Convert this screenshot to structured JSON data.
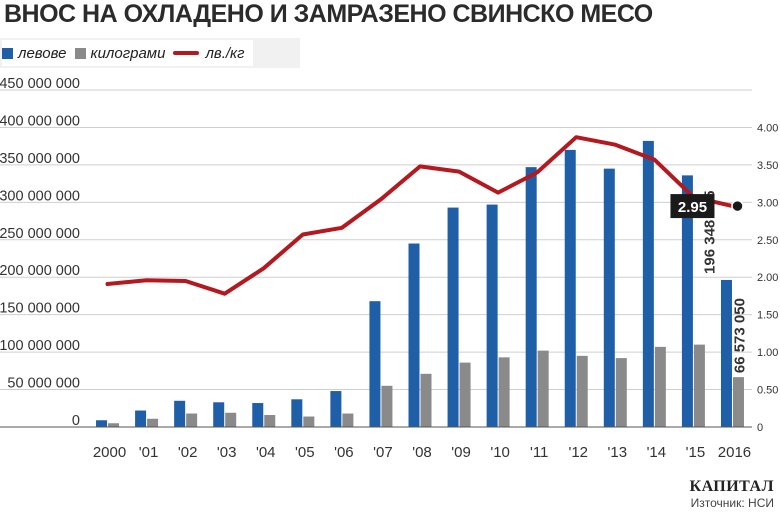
{
  "header": {
    "title": "ВНОС НА ОХЛАДЕНО И ЗАМРАЗЕНО СВИНСКО МЕСО"
  },
  "legend": {
    "leva": "левове",
    "kg": "килограми",
    "price": "лв./кг"
  },
  "footer": {
    "brand": "КАПИТАЛ",
    "source": "Източник: НСИ"
  },
  "colors": {
    "leva": "#1f5fa8",
    "kg": "#8a8a8a",
    "price": "#b3191e"
  },
  "chart_data": {
    "type": "bar",
    "categories": [
      "2000",
      "'01",
      "'02",
      "'03",
      "'04",
      "'05",
      "'06",
      "'07",
      "'08",
      "'09",
      "'10",
      "'11",
      "'12",
      "'13",
      "'14",
      "'15",
      "2016"
    ],
    "series": [
      {
        "name": "левове",
        "axis": "left",
        "type": "bar",
        "values": [
          9000000,
          22000000,
          35000000,
          33000000,
          32000000,
          37000000,
          48000000,
          168000000,
          245000000,
          293000000,
          297000000,
          347000000,
          370000000,
          345000000,
          382000000,
          336000000,
          196348505
        ]
      },
      {
        "name": "килограми",
        "axis": "left",
        "type": "bar",
        "values": [
          5000000,
          11000000,
          18000000,
          19000000,
          16000000,
          14000000,
          18000000,
          55000000,
          71000000,
          86000000,
          93000000,
          102000000,
          95000000,
          92000000,
          107000000,
          110000000,
          66573050
        ]
      },
      {
        "name": "лв./кг",
        "axis": "right",
        "type": "line",
        "values": [
          1.91,
          1.96,
          1.95,
          1.78,
          2.12,
          2.57,
          2.66,
          3.04,
          3.48,
          3.41,
          3.13,
          3.4,
          3.87,
          3.77,
          3.57,
          3.07,
          2.95
        ]
      }
    ],
    "y_left": {
      "min": 0,
      "max": 450000000,
      "ticks": [
        "0",
        "50 000 000",
        "100 000 000",
        "150 000 000",
        "200 000 000",
        "250 000 000",
        "300 000 000",
        "350 000 000",
        "400 000 000",
        "450 000 000"
      ]
    },
    "y_right": {
      "min": 0,
      "max": 4.5,
      "ticks": [
        "0",
        "0.50",
        "1.00",
        "1.50",
        "2.00",
        "2.50",
        "3.00",
        "3.50",
        "4.00"
      ]
    },
    "annotations": {
      "leva_last": "196 348 505",
      "kg_last": "66 573 050",
      "price_last": "2.95"
    },
    "grid": true,
    "legend_position": "top-left"
  }
}
